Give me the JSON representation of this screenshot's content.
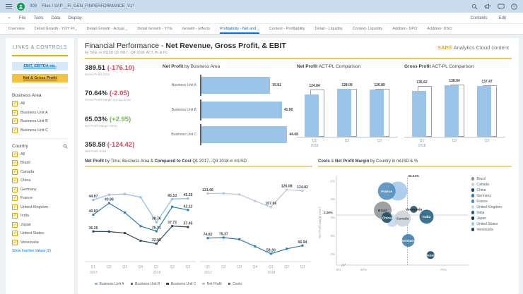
{
  "topbar": {
    "doc_number": "009",
    "breadcrumb": "Files  /  SAP__FI_GEN_FINPERFORMANCE_V1*"
  },
  "menubar": {
    "items": [
      "File",
      "Tools",
      "Data",
      "Display"
    ],
    "right_items": [
      "Contents",
      "Edit"
    ]
  },
  "tabs": {
    "items": [
      "Overview",
      "Detail Growth - YOY Pr_",
      "Detail Growth - Actual _",
      "Detail Growth - YTG",
      "Growth - Effects",
      "Profitability - Net and _",
      "Context - Profitability",
      "Detail - Liquidity",
      "Context- Liquidity",
      "Addition- DPO",
      "Addition- DSO"
    ],
    "active_index": 5
  },
  "sidebar": {
    "title": "LINKS & CONTROLS",
    "links": [
      {
        "label": "EBIT, EBITDA etc."
      },
      {
        "label": "Net & Gross Profit"
      }
    ],
    "business_area": {
      "label": "Business Area",
      "options": [
        "All",
        "Business Unit A",
        "Business Unit B",
        "Business Unit C"
      ]
    },
    "country": {
      "label": "Country",
      "options": [
        "All",
        "Brazil",
        "Canada",
        "China",
        "Germany",
        "France",
        "United Kingdom",
        "India",
        "Japan",
        "United States",
        "Venezuela"
      ]
    },
    "show_inactive": "Show Inactive Values (2)"
  },
  "header": {
    "title_prefix": "Financial Performance - ",
    "title_bold": "Net Revenue, Gross Profit, & EBIT",
    "subtitle": "by Time, in mUSD Q1 2917...Q4 2018, ACT, PL & FC",
    "brand_sap": "SAP®",
    "brand_rest": " Analytics Cloud content"
  },
  "kpis": [
    {
      "value": "389.51",
      "delta": "(-176.10)",
      "trend": "down",
      "label": "Gross Profit 2018"
    },
    {
      "value": "70.64%",
      "delta": "(-2.05)",
      "trend": "down",
      "label": "Gross Profit Margin Q1-Q3 2018"
    },
    {
      "value": "65.03%",
      "delta": "(+2.95)",
      "trend": "up",
      "label": "Net Profit Margin 2018"
    },
    {
      "value": "358.58",
      "delta": "(-124.42)",
      "trend": "down",
      "label": "Net Profit 2018"
    }
  ],
  "row2_left_title": {
    "bold1": "Net Profit",
    "mid": " by Time, Business Area & ",
    "bold2": "Compared to Cost",
    "rest": " Q1 2017...Q3 2018 in mUSD"
  },
  "line_legend": [
    {
      "name": "Business Unit A",
      "color": "#8fbde4"
    },
    {
      "name": "Business Unit B",
      "color": "#2a7cad"
    },
    {
      "name": "Business Unit C",
      "color": "#33495a"
    },
    {
      "name": "Net Profit",
      "color": "#b9c8d6"
    },
    {
      "name": "Costs",
      "color": "#2a7cad"
    }
  ],
  "chart_data": [
    {
      "id": "net-profit-by-business-area",
      "type": "bar",
      "orientation": "horizontal",
      "title_bold": "Net Profit",
      "title_rest": " by Business Area",
      "categories": [
        "Business Unit A",
        "Business Unit B",
        "Business Unit C"
      ],
      "values": [
        35.81,
        41.9,
        44.68
      ],
      "xlim": [
        0,
        46
      ],
      "bar_color": "#9cc3e8"
    },
    {
      "id": "net-profit-act-pl-comparison",
      "type": "bar",
      "subtype": "actual-vs-plan",
      "title_bold": "Net Profit",
      "title_rest": " ACT-PL Comparison",
      "categories": [
        "Q1",
        "Q2",
        "Q3"
      ],
      "year_label": "2018",
      "series": [
        {
          "name": "ACT",
          "values": [
            112.5,
            127.0,
            125.5
          ]
        },
        {
          "name": "PL",
          "values": [
            124.84,
            128.09,
            126.89
          ]
        }
      ],
      "labels": [
        "124.84",
        "128.09",
        "126.89"
      ],
      "ylim": [
        0,
        150
      ]
    },
    {
      "id": "gross-profit-act-pl-comparison",
      "type": "bar",
      "subtype": "actual-vs-plan",
      "title_bold": "Gross Profit",
      "title_rest": " ACT-PL Comparison",
      "categories": [
        "Q1",
        "Q2",
        "Q3"
      ],
      "year_label": "2018",
      "series": [
        {
          "name": "ACT",
          "values": [
            121.5,
            136.0,
            134.5
          ]
        },
        {
          "name": "PL",
          "values": [
            135.62,
            138.94,
            137.47
          ]
        }
      ],
      "labels": [
        "135.62",
        "138.94",
        "137.47"
      ],
      "ylim": [
        0,
        150
      ]
    },
    {
      "id": "net-profit-by-time-business-area",
      "type": "line",
      "x": [
        "Q1",
        "Q2",
        "Q3",
        "Q4",
        "Q1",
        "Q2",
        "Q3"
      ],
      "year_groups": [
        {
          "label": "2017",
          "start": 0
        },
        {
          "label": "2018",
          "start": 4
        }
      ],
      "ylim": [
        28,
        50
      ],
      "series": [
        {
          "name": "Business Unit A",
          "color": "#8fbde4",
          "values": [
            44.87,
            46.3,
            46.5,
            45.6,
            38.76,
            45.1,
            45.25
          ],
          "labels": [
            "44.87",
            null,
            null,
            null,
            "38.76",
            "45.10",
            "45.25"
          ]
        },
        {
          "name": "Business Unit B",
          "color": "#2a7cad",
          "values": [
            40.83,
            43.98,
            41.4,
            37.7,
            36.31,
            43.0,
            42.12
          ],
          "labels": [
            "40.83",
            "43.98",
            null,
            null,
            "36.31",
            null,
            "42.12"
          ]
        },
        {
          "name": "Business Unit C",
          "color": "#33495a",
          "values": [
            36.25,
            36.2,
            35.8,
            33.7,
            32.9,
            37.72,
            37.45
          ],
          "labels": [
            "36.25",
            null,
            null,
            null,
            "32.90",
            "37.72",
            "37.45"
          ]
        }
      ]
    },
    {
      "id": "net-profit-and-costs-by-time",
      "type": "line",
      "x": [
        "Q1",
        "Q2",
        "Q3",
        "Q4",
        "Q1",
        "Q2",
        "Q3"
      ],
      "year_groups": [
        {
          "label": "2017",
          "start": 0
        },
        {
          "label": "2018",
          "start": 4
        }
      ],
      "ylim": [
        50,
        135
      ],
      "series": [
        {
          "name": "Net Profit",
          "color": "#b9c8d6",
          "values": [
            121.95,
            122.2,
            121.0,
            114.0,
            107.66,
            126.08,
            124.82
          ],
          "labels": [
            "121.95",
            null,
            null,
            null,
            "107.66",
            "126.08",
            "124.82"
          ]
        },
        {
          "name": "Costs",
          "color": "#2a7cad",
          "values": [
            74.82,
            75.37,
            73.5,
            66.0,
            58.3,
            63.5,
            66.94
          ],
          "labels": [
            "74.82",
            "75.37",
            null,
            null,
            "58.30",
            null,
            "66.94"
          ]
        }
      ]
    },
    {
      "id": "costs-and-net-profit-margin-by-country",
      "type": "scatter",
      "title_bold1": "Costs",
      "title_mid": " & ",
      "title_bold2": "Net Profit Margin",
      "title_rest": " by Country in mUSD & %",
      "ylabel": "Net Profit Margin 2017",
      "x_ticks": [
        {
          "label": "0%"
        },
        {
          "label": "60%",
          "value": 60
        },
        {
          "label": "70%",
          "value": 70
        }
      ],
      "y_ticks": [
        {
          "label": "6%",
          "value": 6
        },
        {
          "label": "4%",
          "value": 4
        },
        {
          "label": "2%",
          "value": 2
        },
        {
          "label": "0%",
          "value": 0
        },
        {
          "label": "-2%",
          "value": -2
        }
      ],
      "xlim": [
        58,
        73
      ],
      "ylim": [
        -3.2,
        6.6
      ],
      "ref_lines": {
        "x": {
          "value": 65.51,
          "label": "65.51%"
        },
        "y": {
          "value": 2.28,
          "label": "2.28%"
        }
      },
      "bubbles": [
        {
          "name": "United States",
          "x": 64.3,
          "y": 4.9,
          "r": 13.5,
          "show_label": false
        },
        {
          "name": "France",
          "x": 62.9,
          "y": 4.9,
          "r": 12.5,
          "show_label": true,
          "label_color": "#ffffff"
        },
        {
          "name": "Brazil",
          "x": 62.4,
          "y": 2.8,
          "r": 12.5,
          "show_label": true,
          "label_color": "#253341"
        },
        {
          "name": "United Kingdom",
          "x": 63.6,
          "y": 1.6,
          "r": 8,
          "show_label": false
        },
        {
          "name": "Canada",
          "x": 64.9,
          "y": 1.9,
          "r": 11.5,
          "show_label": true,
          "label_color": "#3a4750"
        },
        {
          "name": "China",
          "x": 62.9,
          "y": 2.0,
          "r": 7.5,
          "show_label": true,
          "label_color": "#ffffff"
        },
        {
          "name": "Venezuela",
          "x": 66.3,
          "y": 2.9,
          "r": 5,
          "show_label": true,
          "label_color": "#16222b"
        },
        {
          "name": "Germany",
          "x": 65.6,
          "y": -0.5,
          "r": 9,
          "show_label": true,
          "label_color": "#ffffff"
        },
        {
          "name": "India",
          "x": 67.9,
          "y": 2.1,
          "r": 10,
          "show_label": true,
          "label_color": "#ffffff"
        },
        {
          "name": "Japan",
          "x": 68.4,
          "y": -2.1,
          "r": 5.5,
          "show_label": true,
          "label_color": "#ffffff"
        }
      ],
      "legend": [
        {
          "name": "Brazil",
          "color": "#909499"
        },
        {
          "name": "Canada",
          "color": "#cdd3d8"
        },
        {
          "name": "China",
          "color": "#1b4a63"
        },
        {
          "name": "Germany",
          "color": "#3c7ca8"
        },
        {
          "name": "France",
          "color": "#4e8cbd"
        },
        {
          "name": "United Kingdom",
          "color": "#c3daed"
        },
        {
          "name": "India",
          "color": "#22607f"
        },
        {
          "name": "Japan",
          "color": "#173f55"
        },
        {
          "name": "United States",
          "color": "#a3c8e8"
        },
        {
          "name": "Venezuela",
          "color": "#254b5e"
        }
      ]
    }
  ]
}
